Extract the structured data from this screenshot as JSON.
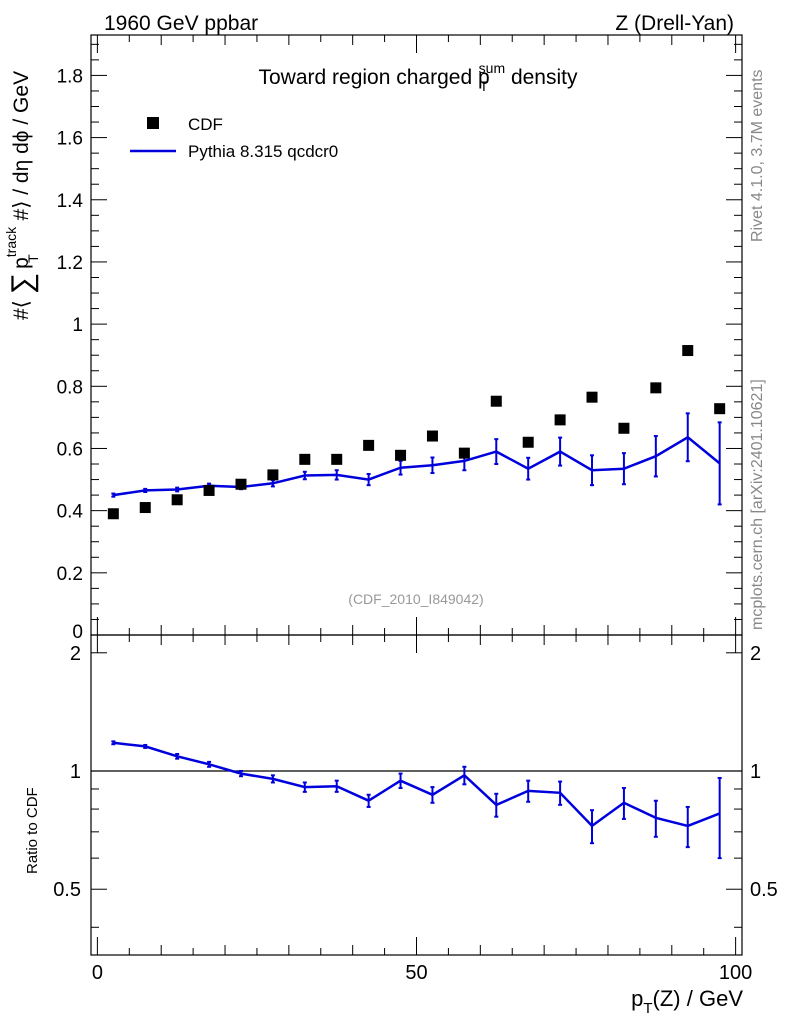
{
  "header": {
    "left": "1960 GeV ppbar",
    "right": "Z (Drell-Yan)"
  },
  "side_labels": {
    "rivet": "Rivet 4.1.0,  3.7M events",
    "mcplots": "mcplots.cern.ch [arXiv:2401.10621]"
  },
  "analysis_tag": "(CDF_2010_I849042)",
  "chart_data": [
    {
      "type": "scatter+line",
      "title_main": "Toward region charged p",
      "title_sub": "T",
      "title_sup": "sum",
      "title_tail": " density",
      "ylabel": "#⟨ ∑ p_T^track #⟩ / dη dϕ / GeV",
      "ylabel_parts": {
        "pre": "#⟨ ",
        "sum": "∑",
        "p": "p",
        "sup": "track",
        "sub": "T",
        "post": " #⟩ / dη dϕ / GeV"
      },
      "xlim": [
        -1,
        101
      ],
      "ylim": [
        0,
        1.93
      ],
      "yticks": [
        0.2,
        0.4,
        0.6,
        0.8,
        1.0,
        1.2,
        1.4,
        1.6,
        1.8
      ],
      "yticklabels": [
        "0.2",
        "0.4",
        "0.6",
        "0.8",
        "1",
        "1.2",
        "1.4",
        "1.6",
        "1.8"
      ],
      "ytick_zero_label": "0",
      "legend": [
        {
          "name": "CDF",
          "marker": "square",
          "color": "#000000"
        },
        {
          "name": "Pythia 8.315 qcdcr0",
          "marker": "line",
          "color": "#0000dd"
        }
      ],
      "series": [
        {
          "name": "CDF",
          "x": [
            2.5,
            7.5,
            12.5,
            17.5,
            22.5,
            27.5,
            32.5,
            37.5,
            42.5,
            47.5,
            52.5,
            57.5,
            62.5,
            67.5,
            72.5,
            77.5,
            82.5,
            87.5,
            92.5,
            97.5
          ],
          "y": [
            0.39,
            0.41,
            0.435,
            0.465,
            0.485,
            0.515,
            0.565,
            0.565,
            0.61,
            0.578,
            0.64,
            0.585,
            0.752,
            0.62,
            0.692,
            0.765,
            0.665,
            0.795,
            0.915,
            0.728
          ]
        },
        {
          "name": "Pythia 8.315 qcdcr0",
          "x": [
            2.5,
            7.5,
            12.5,
            17.5,
            22.5,
            27.5,
            32.5,
            37.5,
            42.5,
            47.5,
            52.5,
            57.5,
            62.5,
            67.5,
            72.5,
            77.5,
            82.5,
            87.5,
            92.5,
            97.5
          ],
          "y": [
            0.45,
            0.465,
            0.468,
            0.48,
            0.476,
            0.488,
            0.513,
            0.515,
            0.5,
            0.538,
            0.546,
            0.56,
            0.59,
            0.535,
            0.59,
            0.53,
            0.535,
            0.575,
            0.636,
            0.552
          ],
          "err": [
            0.005,
            0.005,
            0.006,
            0.007,
            0.007,
            0.01,
            0.012,
            0.015,
            0.018,
            0.022,
            0.025,
            0.03,
            0.04,
            0.035,
            0.045,
            0.048,
            0.05,
            0.065,
            0.077,
            0.132
          ]
        }
      ]
    },
    {
      "type": "line",
      "ylabel": "Ratio to CDF",
      "xlabel_main": "p",
      "xlabel_sub": "T",
      "xlabel_tail": "(Z) / GeV",
      "xlim": [
        -1,
        101
      ],
      "ylim": [
        0.34,
        2.22
      ],
      "xticks": [
        0,
        50,
        100
      ],
      "xticklabels": [
        "0",
        "50",
        "100"
      ],
      "yticks": [
        0.5,
        1,
        2
      ],
      "yticklabels": [
        "0.5",
        "1",
        "2"
      ],
      "reference_line": 1,
      "series": [
        {
          "name": "Pythia 8.315 qcdcr0 / CDF",
          "x": [
            2.5,
            7.5,
            12.5,
            17.5,
            22.5,
            27.5,
            32.5,
            37.5,
            42.5,
            47.5,
            52.5,
            57.5,
            62.5,
            67.5,
            72.5,
            77.5,
            82.5,
            87.5,
            92.5,
            97.5
          ],
          "y": [
            1.18,
            1.155,
            1.09,
            1.04,
            0.985,
            0.955,
            0.91,
            0.915,
            0.84,
            0.945,
            0.87,
            0.975,
            0.82,
            0.89,
            0.88,
            0.725,
            0.83,
            0.76,
            0.725,
            0.78
          ],
          "err": [
            0.01,
            0.01,
            0.015,
            0.015,
            0.015,
            0.02,
            0.025,
            0.03,
            0.03,
            0.04,
            0.04,
            0.05,
            0.055,
            0.055,
            0.06,
            0.07,
            0.075,
            0.08,
            0.085,
            0.18
          ]
        }
      ]
    }
  ]
}
